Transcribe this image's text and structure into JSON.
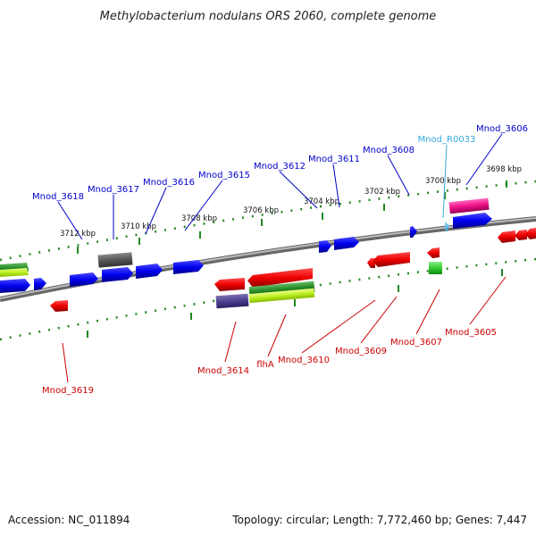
{
  "title": "Methylobacterium nodulans ORS 2060, complete genome",
  "footer": {
    "accession": "Accession: NC_011894",
    "summary": "Topology: circular; Length: 7,772,460 bp; Genes: 7,447"
  },
  "ticks": [
    "3712 kbp",
    "3710 kbp",
    "3708 kbp",
    "3706 kbp",
    "3704 kbp",
    "3702 kbp",
    "3700 kbp",
    "3698 kbp"
  ],
  "colors": {
    "forward_label": "#0000cc",
    "reverse_label": "#cc0000",
    "rna_label": "#33aadd",
    "backbone": "#888888"
  },
  "labels": {
    "top": [
      "Mnod_3618",
      "Mnod_3617",
      "Mnod_3616",
      "Mnod_3615",
      "Mnod_3612",
      "Mnod_3611",
      "Mnod_3608",
      "Mnod_R0033",
      "Mnod_3606"
    ],
    "bottom": [
      "Mnod_3619",
      "Mnod_3614",
      "flhA",
      "Mnod_3610",
      "Mnod_3609",
      "Mnod_3607",
      "Mnod_3605"
    ]
  }
}
